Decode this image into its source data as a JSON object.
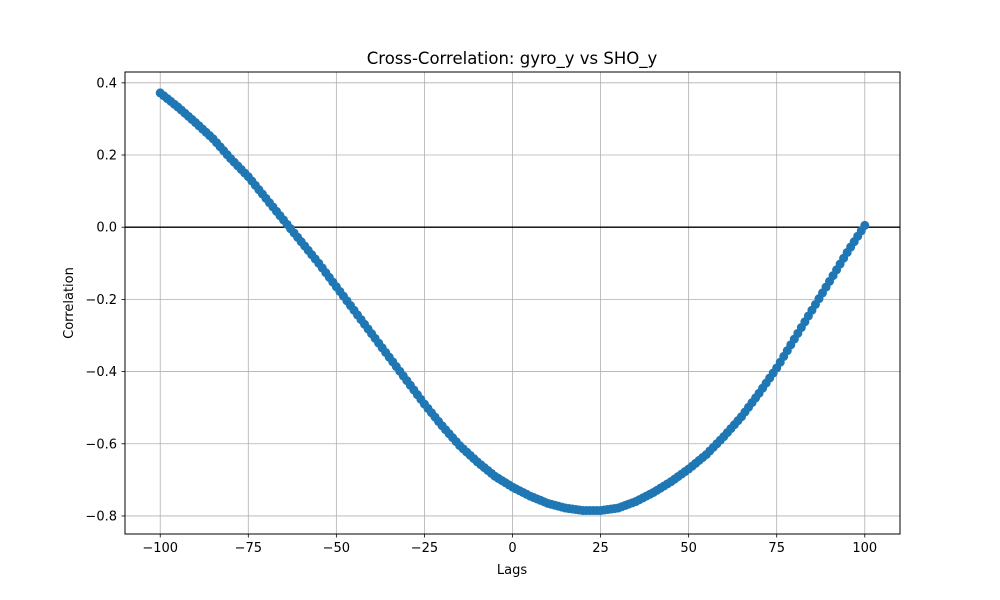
{
  "chart_data": {
    "type": "scatter",
    "title": "Cross-Correlation: gyro_y vs SHO_y",
    "xlabel": "Lags",
    "ylabel": "Correlation",
    "xlim": [
      -110,
      110
    ],
    "ylim": [
      -0.85,
      0.43
    ],
    "xticks": [
      -100,
      -75,
      -50,
      -25,
      0,
      25,
      50,
      75,
      100
    ],
    "xtick_labels": [
      "−100",
      "−75",
      "−50",
      "−25",
      "0",
      "25",
      "50",
      "75",
      "100"
    ],
    "yticks": [
      -0.8,
      -0.6,
      -0.4,
      -0.2,
      0.0,
      0.2,
      0.4
    ],
    "ytick_labels": [
      "−0.8",
      "−0.6",
      "−0.4",
      "−0.2",
      "0.0",
      "0.2",
      "0.4"
    ],
    "grid": true,
    "reference_line_y": 0,
    "series": [
      {
        "marker": "circle",
        "color": "#1f77b4",
        "x": [
          -100,
          -95,
          -90,
          -85,
          -80,
          -75,
          -70,
          -65,
          -60,
          -55,
          -50,
          -45,
          -40,
          -35,
          -30,
          -25,
          -20,
          -15,
          -10,
          -5,
          0,
          5,
          10,
          15,
          20,
          25,
          30,
          35,
          40,
          45,
          50,
          55,
          60,
          65,
          70,
          75,
          80,
          85,
          90,
          95,
          100
        ],
        "y": [
          0.372,
          0.333,
          0.29,
          0.245,
          0.19,
          0.14,
          0.08,
          0.02,
          -0.04,
          -0.1,
          -0.165,
          -0.23,
          -0.295,
          -0.36,
          -0.425,
          -0.49,
          -0.55,
          -0.605,
          -0.65,
          -0.69,
          -0.72,
          -0.745,
          -0.765,
          -0.778,
          -0.785,
          -0.785,
          -0.778,
          -0.76,
          -0.735,
          -0.705,
          -0.67,
          -0.63,
          -0.58,
          -0.525,
          -0.46,
          -0.39,
          -0.31,
          -0.23,
          -0.15,
          -0.07,
          0.005
        ]
      }
    ]
  }
}
